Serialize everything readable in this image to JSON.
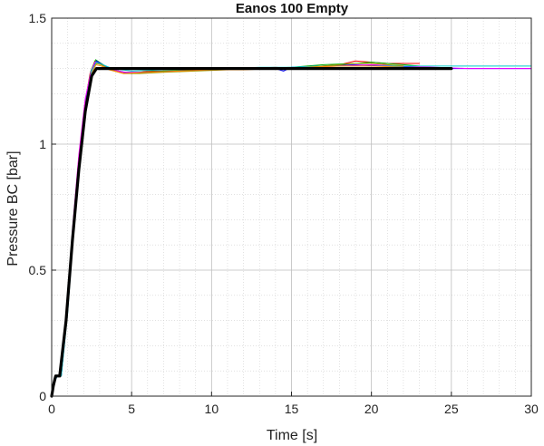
{
  "chart_data": {
    "type": "line",
    "title": "Eanos 100  Empty",
    "xlabel": "Time [s]",
    "ylabel": "Pressure BC [bar]",
    "xlim": [
      0,
      30
    ],
    "ylim": [
      0,
      1.5
    ],
    "xticks": [
      0,
      5,
      10,
      15,
      20,
      25,
      30
    ],
    "xtick_labels": [
      "0",
      "5",
      "10",
      "15",
      "20",
      "25",
      "30"
    ],
    "yticks": [
      0,
      0.5,
      1,
      1.5
    ],
    "ytick_labels": [
      "0",
      "0.5",
      "1",
      "1.5"
    ],
    "grid": true,
    "minor_grid": true,
    "series": [
      {
        "color": "#ff0000",
        "points": [
          [
            0,
            0
          ],
          [
            0.15,
            0.05
          ],
          [
            0.3,
            0.08
          ],
          [
            0.55,
            0.08
          ],
          [
            0.9,
            0.3
          ],
          [
            1.3,
            0.65
          ],
          [
            1.7,
            0.95
          ],
          [
            2.1,
            1.17
          ],
          [
            2.4,
            1.28
          ],
          [
            2.7,
            1.33
          ],
          [
            3.0,
            1.32
          ],
          [
            3.5,
            1.3
          ],
          [
            4.0,
            1.29
          ],
          [
            5.0,
            1.28
          ],
          [
            6.0,
            1.29
          ],
          [
            8.0,
            1.29
          ],
          [
            10.0,
            1.3
          ],
          [
            12.0,
            1.3
          ],
          [
            14.0,
            1.305
          ],
          [
            15.0,
            1.3
          ],
          [
            17.0,
            1.31
          ],
          [
            18.0,
            1.315
          ],
          [
            19.0,
            1.33
          ],
          [
            20.0,
            1.325
          ],
          [
            21.0,
            1.32
          ],
          [
            22.0,
            1.32
          ],
          [
            23.0,
            1.32
          ]
        ]
      },
      {
        "color": "#00aa00",
        "points": [
          [
            0,
            0
          ],
          [
            0.15,
            0.06
          ],
          [
            0.35,
            0.08
          ],
          [
            0.6,
            0.08
          ],
          [
            0.95,
            0.32
          ],
          [
            1.35,
            0.67
          ],
          [
            1.75,
            0.97
          ],
          [
            2.15,
            1.19
          ],
          [
            2.45,
            1.29
          ],
          [
            2.75,
            1.335
          ],
          [
            3.1,
            1.32
          ],
          [
            3.6,
            1.3
          ],
          [
            4.5,
            1.285
          ],
          [
            5.5,
            1.285
          ],
          [
            7.0,
            1.29
          ],
          [
            9.0,
            1.295
          ],
          [
            11.0,
            1.3
          ],
          [
            13.0,
            1.3
          ],
          [
            15.0,
            1.305
          ],
          [
            17.0,
            1.315
          ],
          [
            19.0,
            1.32
          ],
          [
            20.0,
            1.325
          ],
          [
            21.0,
            1.32
          ],
          [
            22.0,
            1.315
          ],
          [
            23.0,
            1.31
          ]
        ]
      },
      {
        "color": "#0000ff",
        "points": [
          [
            0,
            0
          ],
          [
            0.2,
            0.06
          ],
          [
            0.35,
            0.08
          ],
          [
            0.6,
            0.08
          ],
          [
            1.0,
            0.34
          ],
          [
            1.4,
            0.69
          ],
          [
            1.8,
            0.99
          ],
          [
            2.2,
            1.2
          ],
          [
            2.5,
            1.29
          ],
          [
            2.8,
            1.33
          ],
          [
            3.2,
            1.315
          ],
          [
            3.8,
            1.295
          ],
          [
            5.0,
            1.28
          ],
          [
            6.0,
            1.285
          ],
          [
            8.0,
            1.29
          ],
          [
            10.0,
            1.295
          ],
          [
            12.0,
            1.3
          ],
          [
            14.0,
            1.3
          ],
          [
            14.5,
            1.29
          ],
          [
            15.0,
            1.305
          ],
          [
            17.0,
            1.31
          ],
          [
            19.0,
            1.315
          ],
          [
            21.0,
            1.31
          ],
          [
            23.0,
            1.305
          ],
          [
            25.0,
            1.3
          ],
          [
            28.0,
            1.3
          ],
          [
            30.0,
            1.3
          ]
        ]
      },
      {
        "color": "#ff00ff",
        "points": [
          [
            0,
            0
          ],
          [
            0.15,
            0.05
          ],
          [
            0.3,
            0.08
          ],
          [
            0.55,
            0.08
          ],
          [
            0.9,
            0.31
          ],
          [
            1.3,
            0.66
          ],
          [
            1.7,
            0.96
          ],
          [
            2.1,
            1.18
          ],
          [
            2.45,
            1.285
          ],
          [
            2.7,
            1.325
          ],
          [
            3.0,
            1.32
          ],
          [
            3.5,
            1.3
          ],
          [
            4.5,
            1.285
          ],
          [
            6.0,
            1.285
          ],
          [
            8.0,
            1.29
          ],
          [
            10.0,
            1.295
          ],
          [
            12.0,
            1.3
          ],
          [
            14.0,
            1.3
          ],
          [
            16.0,
            1.305
          ],
          [
            18.0,
            1.31
          ],
          [
            20.0,
            1.315
          ],
          [
            22.0,
            1.31
          ],
          [
            24.0,
            1.305
          ],
          [
            26.0,
            1.3
          ],
          [
            30.0,
            1.3
          ]
        ]
      },
      {
        "color": "#00cccc",
        "points": [
          [
            0,
            0
          ],
          [
            0.2,
            0.06
          ],
          [
            0.35,
            0.08
          ],
          [
            0.6,
            0.08
          ],
          [
            1.0,
            0.33
          ],
          [
            1.4,
            0.68
          ],
          [
            1.8,
            0.98
          ],
          [
            2.2,
            1.19
          ],
          [
            2.5,
            1.29
          ],
          [
            2.8,
            1.325
          ],
          [
            3.2,
            1.315
          ],
          [
            3.8,
            1.3
          ],
          [
            5.0,
            1.29
          ],
          [
            7.0,
            1.295
          ],
          [
            9.0,
            1.3
          ],
          [
            11.0,
            1.3
          ],
          [
            13.0,
            1.305
          ],
          [
            15.0,
            1.305
          ],
          [
            17.0,
            1.31
          ],
          [
            19.0,
            1.31
          ],
          [
            21.0,
            1.31
          ],
          [
            23.0,
            1.31
          ],
          [
            25.0,
            1.31
          ],
          [
            27.0,
            1.31
          ],
          [
            30.0,
            1.31
          ]
        ]
      },
      {
        "color": "#999900",
        "points": [
          [
            0,
            0
          ],
          [
            0.15,
            0.05
          ],
          [
            0.3,
            0.08
          ],
          [
            0.55,
            0.08
          ],
          [
            0.95,
            0.3
          ],
          [
            1.35,
            0.64
          ],
          [
            1.75,
            0.94
          ],
          [
            2.15,
            1.16
          ],
          [
            2.5,
            1.28
          ],
          [
            2.8,
            1.32
          ],
          [
            3.1,
            1.315
          ],
          [
            3.7,
            1.295
          ],
          [
            4.5,
            1.28
          ],
          [
            5.5,
            1.28
          ],
          [
            7.0,
            1.285
          ],
          [
            9.0,
            1.29
          ],
          [
            11.0,
            1.295
          ],
          [
            13.0,
            1.3
          ],
          [
            15.0,
            1.3
          ],
          [
            17.0,
            1.31
          ],
          [
            19.0,
            1.32
          ],
          [
            20.0,
            1.32
          ],
          [
            21.0,
            1.315
          ],
          [
            22.0,
            1.31
          ]
        ]
      },
      {
        "color": "#ff8800",
        "points": [
          [
            0,
            0
          ],
          [
            0.15,
            0.05
          ],
          [
            0.3,
            0.08
          ],
          [
            0.55,
            0.08
          ],
          [
            0.9,
            0.29
          ],
          [
            1.3,
            0.63
          ],
          [
            1.7,
            0.93
          ],
          [
            2.1,
            1.15
          ],
          [
            2.45,
            1.27
          ],
          [
            2.75,
            1.315
          ],
          [
            3.1,
            1.31
          ],
          [
            3.6,
            1.295
          ],
          [
            4.5,
            1.28
          ],
          [
            6.0,
            1.285
          ],
          [
            8.0,
            1.29
          ],
          [
            10.0,
            1.295
          ],
          [
            12.0,
            1.295
          ],
          [
            14.0,
            1.3
          ],
          [
            16.0,
            1.305
          ],
          [
            18.0,
            1.31
          ],
          [
            20.0,
            1.31
          ],
          [
            22.0,
            1.305
          ]
        ]
      },
      {
        "color": "#000000",
        "width": 3.2,
        "points": [
          [
            0,
            0
          ],
          [
            0.1,
            0.04
          ],
          [
            0.25,
            0.08
          ],
          [
            0.5,
            0.08
          ],
          [
            0.9,
            0.3
          ],
          [
            1.3,
            0.62
          ],
          [
            1.7,
            0.9
          ],
          [
            2.1,
            1.13
          ],
          [
            2.5,
            1.27
          ],
          [
            2.8,
            1.3
          ],
          [
            3.0,
            1.3
          ],
          [
            5.0,
            1.3
          ],
          [
            10.0,
            1.3
          ],
          [
            15.0,
            1.3
          ],
          [
            20.0,
            1.3
          ],
          [
            25.0,
            1.3
          ]
        ]
      }
    ]
  }
}
